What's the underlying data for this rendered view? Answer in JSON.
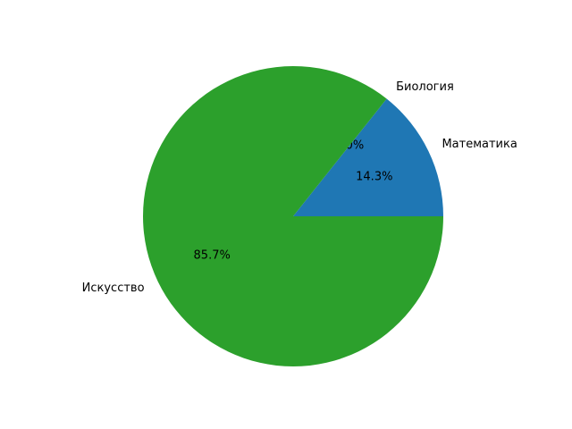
{
  "chart_data": {
    "type": "pie",
    "categories": [
      "Математика",
      "Биология",
      "Искусство"
    ],
    "values": [
      14.3,
      0.0,
      85.7
    ],
    "percent_labels": [
      "14.3%",
      "0.0%",
      "85.7%"
    ],
    "colors": [
      "#1f77b4",
      "#ff7f0e",
      "#2ca02c"
    ],
    "start_angle_deg": 0,
    "direction": "counterclockwise",
    "title": "",
    "legend": "none"
  }
}
